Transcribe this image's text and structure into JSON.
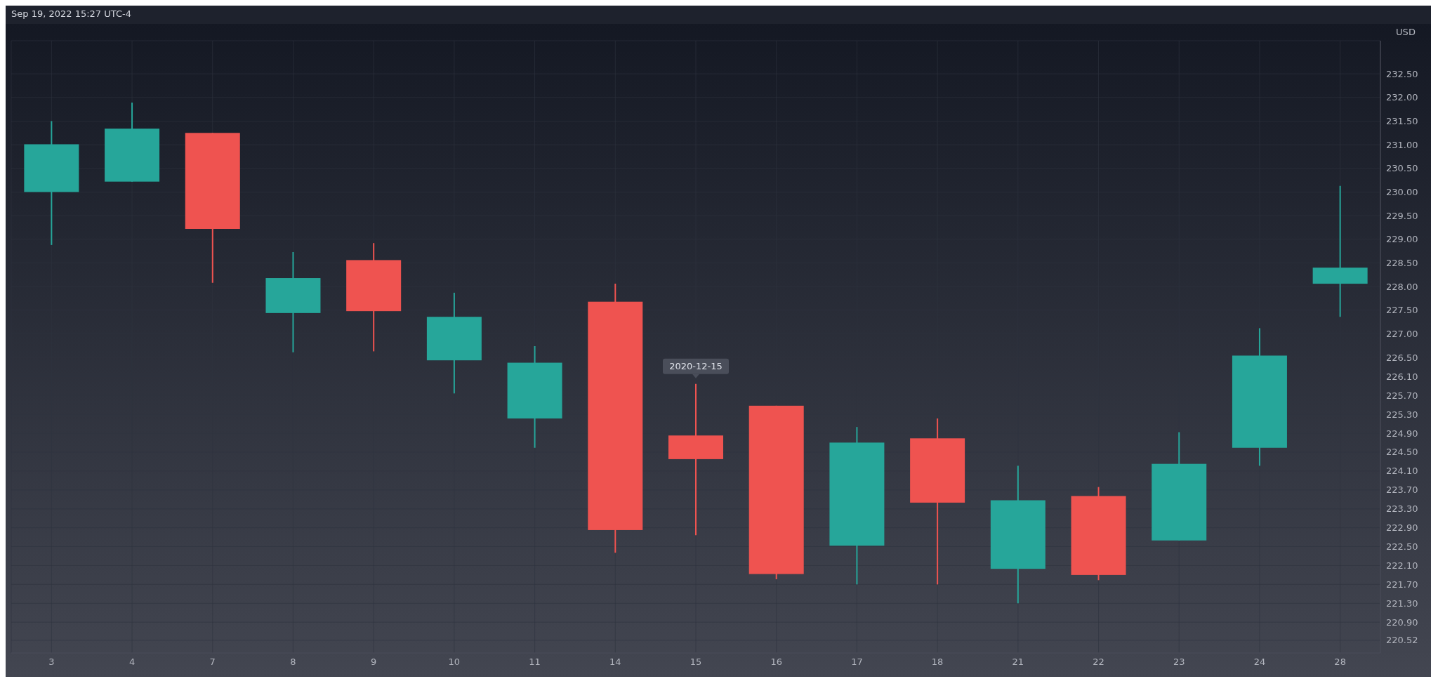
{
  "chart_data": {
    "type": "candlestick",
    "ylabel": "USD",
    "annotations": [
      "Sep 19, 2022 15:27 UTC-4",
      {
        "text": "2020-12-15",
        "x": "15",
        "y": 225.94
      }
    ],
    "categories": [
      "3",
      "4",
      "7",
      "8",
      "9",
      "10",
      "11",
      "14",
      "15",
      "16",
      "17",
      "18",
      "21",
      "22",
      "23",
      "24",
      "28"
    ],
    "ohlc": [
      [
        230.0,
        231.5,
        228.88,
        231.01
      ],
      [
        230.22,
        231.89,
        230.22,
        231.34
      ],
      [
        231.25,
        231.25,
        228.08,
        229.22
      ],
      [
        227.44,
        228.73,
        226.61,
        228.18
      ],
      [
        228.56,
        228.92,
        226.63,
        227.48
      ],
      [
        226.44,
        227.87,
        225.74,
        227.36
      ],
      [
        225.21,
        226.74,
        224.59,
        226.39
      ],
      [
        227.68,
        228.06,
        222.37,
        222.85
      ],
      [
        224.85,
        225.94,
        222.74,
        224.35
      ],
      [
        225.48,
        225.48,
        221.81,
        221.92
      ],
      [
        222.52,
        225.03,
        221.7,
        224.7
      ],
      [
        224.79,
        225.21,
        221.7,
        223.43
      ],
      [
        222.03,
        224.21,
        221.3,
        223.48
      ],
      [
        223.57,
        223.76,
        221.79,
        221.9
      ],
      [
        222.63,
        224.92,
        222.63,
        224.25
      ],
      [
        224.59,
        227.12,
        224.21,
        226.54
      ],
      [
        228.06,
        230.13,
        227.36,
        228.4
      ]
    ],
    "colors": [
      "#26a69a",
      "#26a69a",
      "#ef5350",
      "#26a69a",
      "#ef5350",
      "#26a69a",
      "#26a69a",
      "#ef5350",
      "#ef5350",
      "#ef5350",
      "#26a69a",
      "#ef5350",
      "#26a69a",
      "#ef5350",
      "#26a69a",
      "#26a69a",
      "#26a69a"
    ],
    "ylim": [
      220.25,
      233.2
    ],
    "yticks": [
      {
        "value": 220.52,
        "label": "220.52"
      },
      {
        "value": 220.9,
        "label": "220.90"
      },
      {
        "value": 221.3,
        "label": "221.30"
      },
      {
        "value": 221.7,
        "label": "221.70"
      },
      {
        "value": 222.1,
        "label": "222.10"
      },
      {
        "value": 222.5,
        "label": "222.50"
      },
      {
        "value": 222.9,
        "label": "222.90"
      },
      {
        "value": 223.3,
        "label": "223.30"
      },
      {
        "value": 223.7,
        "label": "223.70"
      },
      {
        "value": 224.1,
        "label": "224.10"
      },
      {
        "value": 224.5,
        "label": "224.50"
      },
      {
        "value": 224.9,
        "label": "224.90"
      },
      {
        "value": 225.3,
        "label": "225.30"
      },
      {
        "value": 225.7,
        "label": "225.70"
      },
      {
        "value": 226.1,
        "label": "226.10"
      },
      {
        "value": 226.5,
        "label": "226.50"
      },
      {
        "value": 227,
        "label": "227.00"
      },
      {
        "value": 227.5,
        "label": "227.50"
      },
      {
        "value": 228,
        "label": "228.00"
      },
      {
        "value": 228.5,
        "label": "228.50"
      },
      {
        "value": 229,
        "label": "229.00"
      },
      {
        "value": 229.5,
        "label": "229.50"
      },
      {
        "value": 230,
        "label": "230.00"
      },
      {
        "value": 230.5,
        "label": "230.50"
      },
      {
        "value": 231,
        "label": "231.00"
      },
      {
        "value": 231.5,
        "label": "231.50"
      },
      {
        "value": 232,
        "label": "232.00"
      },
      {
        "value": 232.5,
        "label": "232.50"
      }
    ],
    "grid": true
  }
}
